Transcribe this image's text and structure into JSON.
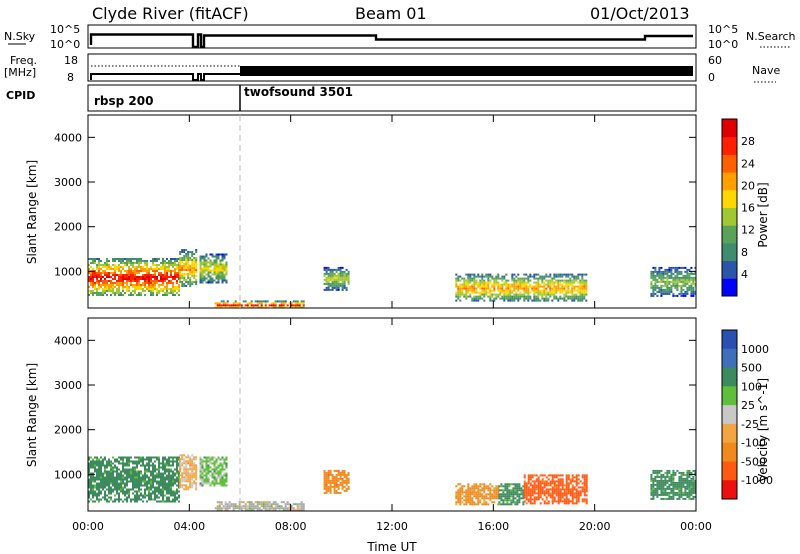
{
  "header": {
    "station": "Clyde River (fitACF)",
    "beam": "Beam 01",
    "date": "01/Oct/2013"
  },
  "top_panels": {
    "nsky_label": "N.Sky",
    "nsky_ticks": [
      "10^5",
      "10^0"
    ],
    "nsearch_label": "N.Search",
    "nsearch_ticks": [
      "10^5",
      "10^0"
    ],
    "freq_label_line1": "Freq.",
    "freq_label_line2": "[MHz]",
    "freq_ticks": [
      "18",
      "8"
    ],
    "nave_label": "Nave",
    "nave_ticks": [
      "60",
      "0"
    ],
    "cpid_label": "CPID",
    "cpid_segments": [
      {
        "name": "rbsp 200",
        "start_hour": 0
      },
      {
        "name": "twofsound 3501",
        "start_hour": 6
      }
    ]
  },
  "colors": {
    "power_scale": [
      "#0000ff",
      "#2a55a8",
      "#408c6e",
      "#5aa25a",
      "#a0c832",
      "#ffd700",
      "#ffa000",
      "#ff6000",
      "#ff2000",
      "#e00000"
    ],
    "velocity_scale": [
      "#2a4fb0",
      "#3f6fb8",
      "#3d8a5e",
      "#5fbf3a",
      "#c8c8c8",
      "#f2a541",
      "#f08a1c",
      "#ff5a14",
      "#ee1010"
    ],
    "ground_scatter": "#a9a9a9"
  },
  "chart_data": [
    {
      "type": "heatmap",
      "title": "",
      "xlabel": "Time UT",
      "ylabel": "Slant Range [km]",
      "xlim_hours": [
        0,
        24
      ],
      "ylim_km": [
        180,
        4500
      ],
      "x_ticks": [
        "00:00",
        "04:00",
        "08:00",
        "12:00",
        "16:00",
        "20:00",
        "00:00"
      ],
      "y_ticks": [
        "1000",
        "2000",
        "3000",
        "4000"
      ],
      "colorbar": {
        "label": "Power [dB]",
        "range": [
          0,
          32
        ],
        "ticks": [
          "4",
          "8",
          "12",
          "16",
          "20",
          "24",
          "28"
        ]
      },
      "echo_regions": [
        {
          "start_hour": 0.0,
          "end_hour": 3.6,
          "min_km": 450,
          "max_km": 1300,
          "peak_db": 30
        },
        {
          "start_hour": 3.6,
          "end_hour": 4.3,
          "min_km": 650,
          "max_km": 1500,
          "peak_db": 22
        },
        {
          "start_hour": 4.4,
          "end_hour": 5.5,
          "min_km": 750,
          "max_km": 1400,
          "peak_db": 18
        },
        {
          "start_hour": 5.0,
          "end_hour": 8.5,
          "min_km": 180,
          "max_km": 350,
          "peak_db": 30
        },
        {
          "start_hour": 9.3,
          "end_hour": 10.3,
          "min_km": 600,
          "max_km": 1100,
          "peak_db": 16
        },
        {
          "start_hour": 14.5,
          "end_hour": 19.7,
          "min_km": 350,
          "max_km": 950,
          "peak_db": 22
        },
        {
          "start_hour": 22.2,
          "end_hour": 24.0,
          "min_km": 450,
          "max_km": 1100,
          "peak_db": 14
        }
      ]
    },
    {
      "type": "heatmap",
      "title": "",
      "xlabel": "Time UT",
      "ylabel": "Slant Range [km]",
      "xlim_hours": [
        0,
        24
      ],
      "ylim_km": [
        180,
        4500
      ],
      "x_ticks": [
        "00:00",
        "04:00",
        "08:00",
        "12:00",
        "16:00",
        "20:00",
        "00:00"
      ],
      "y_ticks": [
        "1000",
        "2000",
        "3000",
        "4000"
      ],
      "colorbar": {
        "label": "Velocity [m s^-1]",
        "ticks": [
          "1000",
          "500",
          "100",
          "25",
          "-25",
          "-100",
          "-500",
          "-1000"
        ]
      },
      "echo_regions": [
        {
          "start_hour": 0.0,
          "end_hour": 3.6,
          "min_km": 400,
          "max_km": 1400,
          "velocity": 150
        },
        {
          "start_hour": 3.6,
          "end_hour": 4.3,
          "min_km": 650,
          "max_km": 1450,
          "velocity": -50
        },
        {
          "start_hour": 4.4,
          "end_hour": 5.5,
          "min_km": 750,
          "max_km": 1400,
          "velocity": 50
        },
        {
          "start_hour": 5.0,
          "end_hour": 8.5,
          "min_km": 180,
          "max_km": 400,
          "velocity": 0
        },
        {
          "start_hour": 9.3,
          "end_hour": 10.3,
          "min_km": 600,
          "max_km": 1100,
          "velocity": -200
        },
        {
          "start_hour": 14.5,
          "end_hour": 16.2,
          "min_km": 350,
          "max_km": 800,
          "velocity": -150
        },
        {
          "start_hour": 16.2,
          "end_hour": 17.2,
          "min_km": 350,
          "max_km": 800,
          "velocity": 150
        },
        {
          "start_hour": 17.2,
          "end_hour": 19.7,
          "min_km": 350,
          "max_km": 1000,
          "velocity": -300
        },
        {
          "start_hour": 22.2,
          "end_hour": 24.0,
          "min_km": 450,
          "max_km": 1100,
          "velocity": 150
        }
      ]
    }
  ]
}
